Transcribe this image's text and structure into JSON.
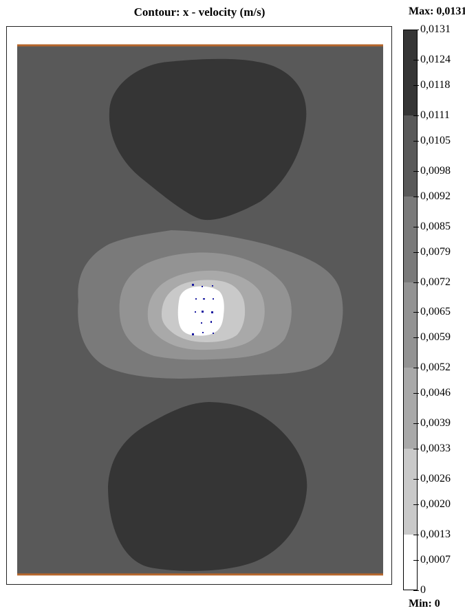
{
  "chart_data": {
    "type": "heatmap",
    "title": "Contour: x - velocity (m/s)",
    "max_label": "Max: 0,0131",
    "min_label": "Min: 0",
    "colorbar": {
      "tick_labels": [
        "0,0131",
        "0,0124",
        "0,0118",
        "0,0111",
        "0,0105",
        "0,0098",
        "0,0092",
        "0,0085",
        "0,0079",
        "0,0072",
        "0,0065",
        "0,0059",
        "0,0052",
        "0,0046",
        "0,0039",
        "0,0033",
        "0,0026",
        "0,0020",
        "0,0013",
        "0,0007",
        "0"
      ],
      "tick_values": [
        0.0131,
        0.0124,
        0.0118,
        0.0111,
        0.0105,
        0.0098,
        0.0092,
        0.0085,
        0.0079,
        0.0072,
        0.0065,
        0.0059,
        0.0052,
        0.0046,
        0.0039,
        0.0033,
        0.0026,
        0.002,
        0.0013,
        0.0007,
        0
      ],
      "levels": [
        {
          "from": 0.0111,
          "to": 0.0131,
          "color": "#353535"
        },
        {
          "from": 0.0092,
          "to": 0.0111,
          "color": "#595959"
        },
        {
          "from": 0.0072,
          "to": 0.0092,
          "color": "#7a7a7a"
        },
        {
          "from": 0.0052,
          "to": 0.0072,
          "color": "#939393"
        },
        {
          "from": 0.0033,
          "to": 0.0052,
          "color": "#a9a9a9"
        },
        {
          "from": 0.0013,
          "to": 0.0033,
          "color": "#c9c9c9"
        },
        {
          "from": 0,
          "to": 0.0013,
          "color": "#ffffff"
        }
      ],
      "vmin": 0,
      "vmax": 0.0131
    },
    "domain_border_color": "#b5652a"
  }
}
